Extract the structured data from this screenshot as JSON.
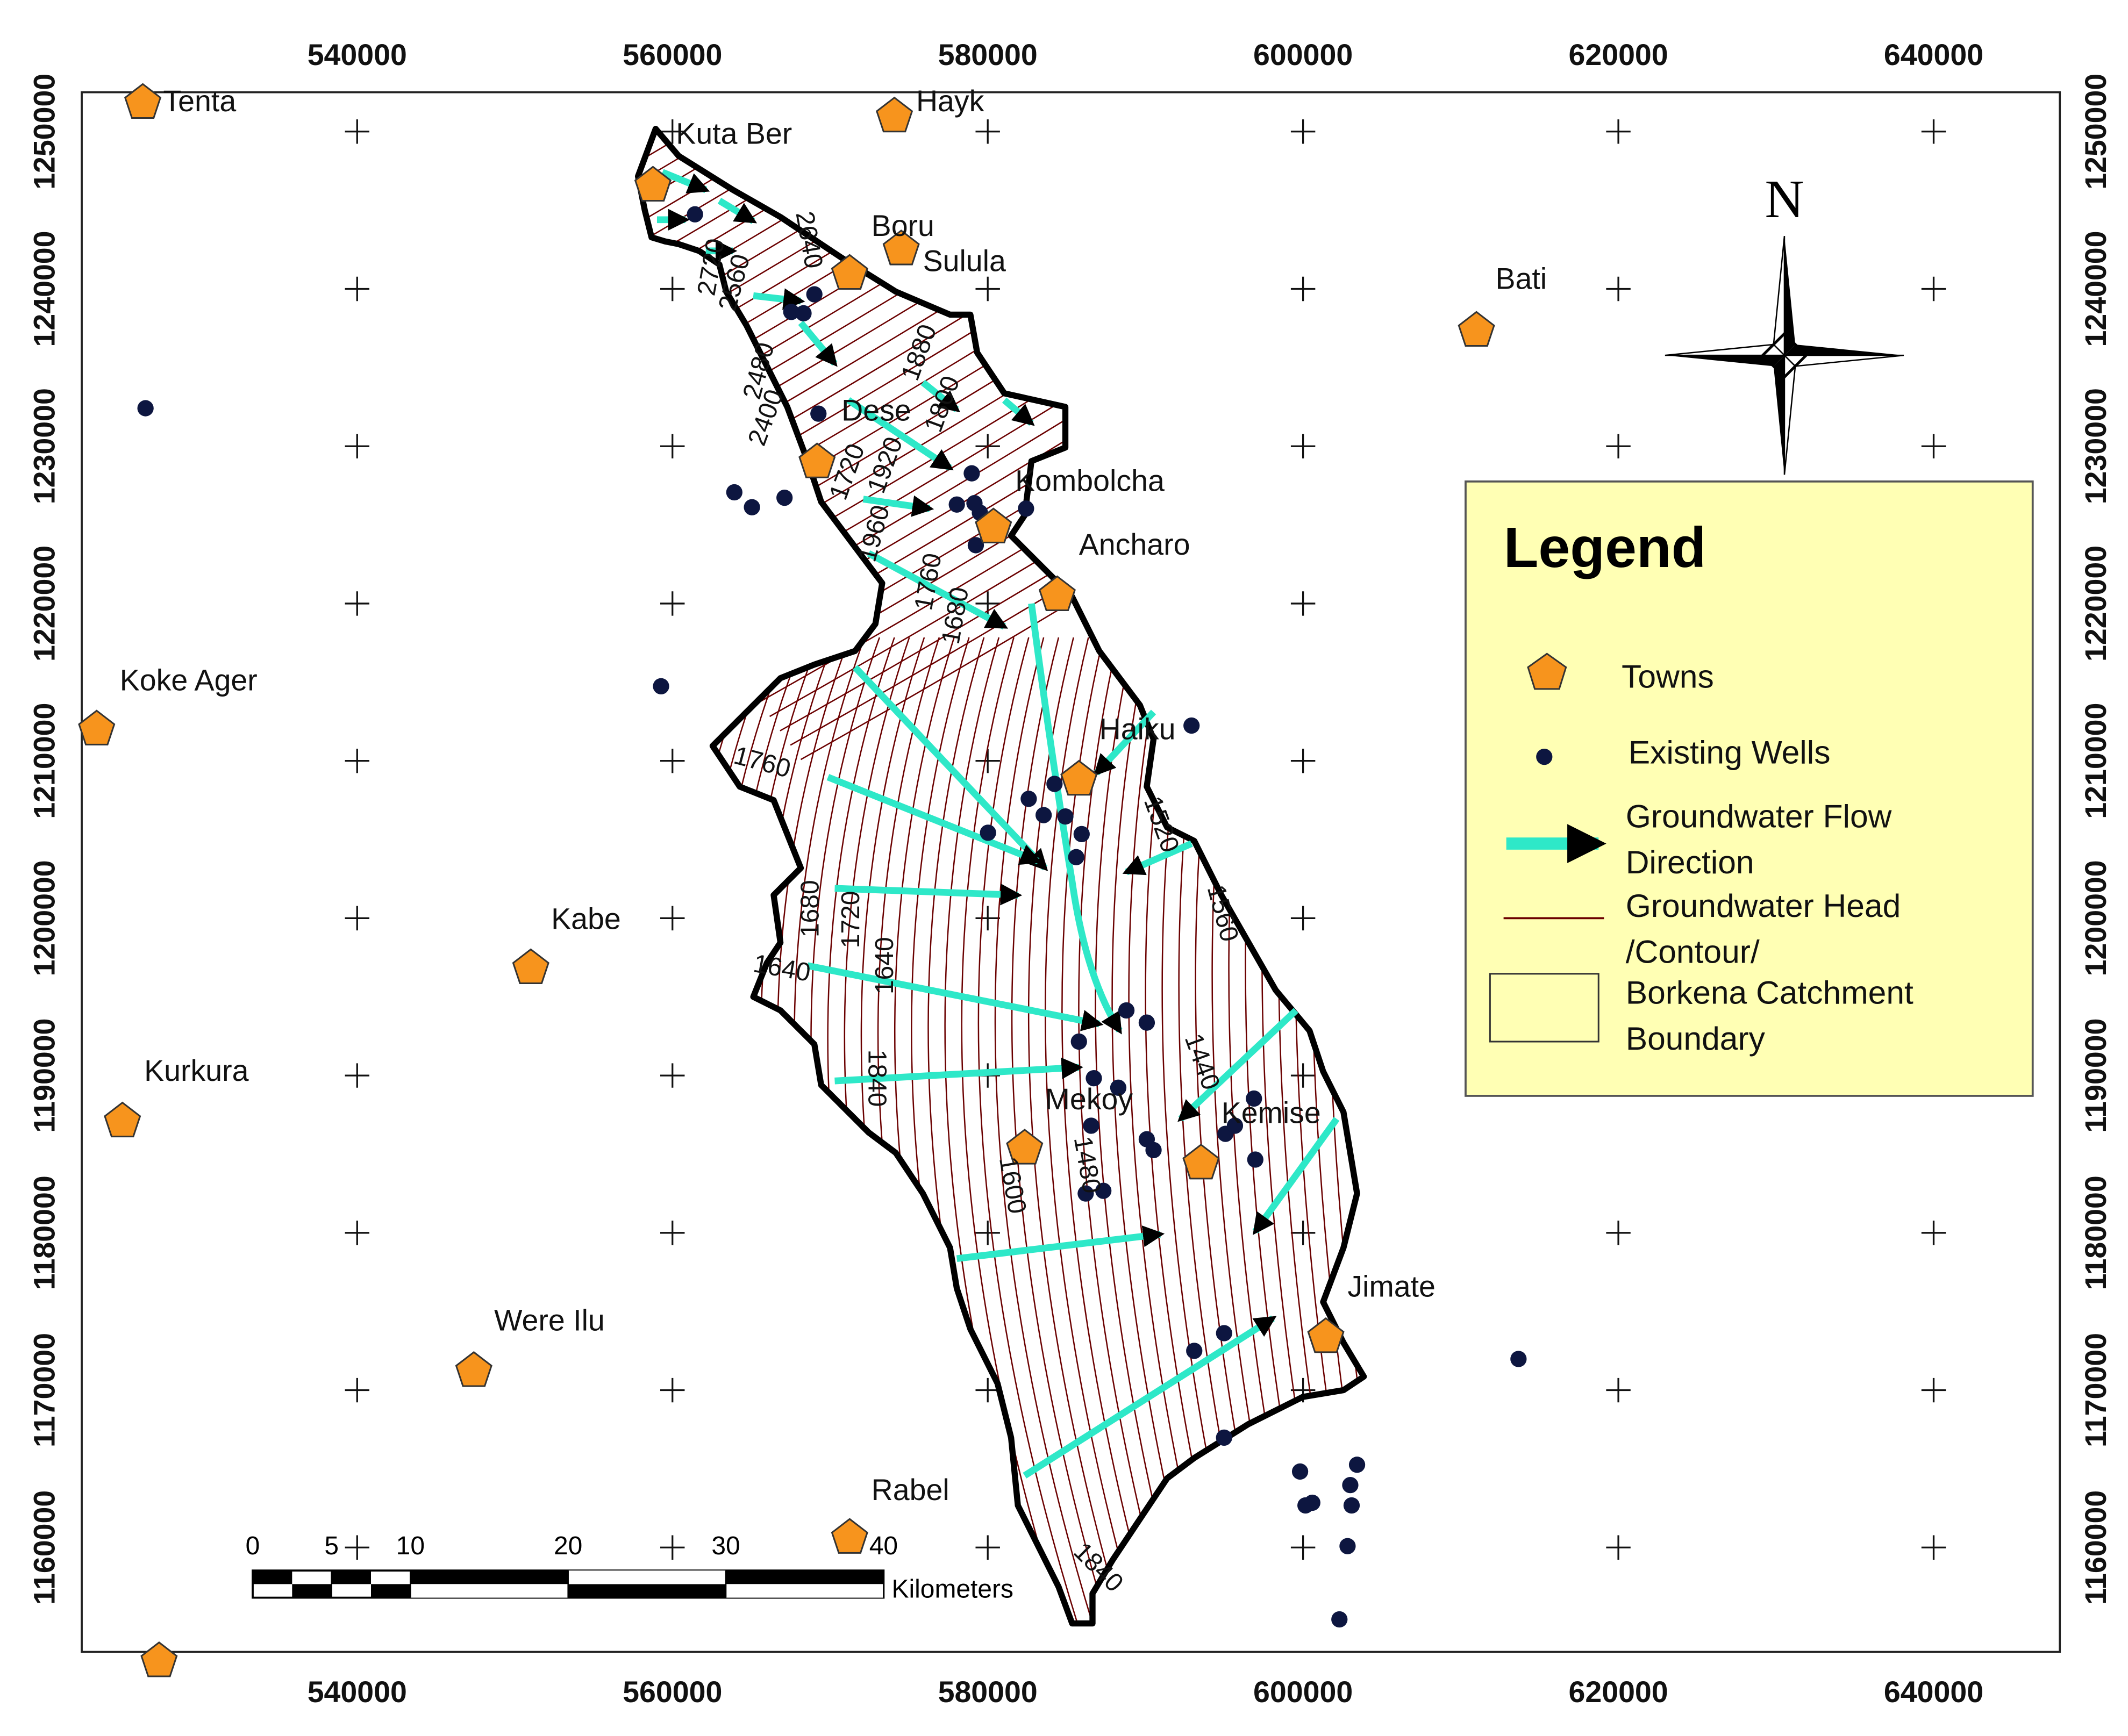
{
  "map": {
    "x_ticks": [
      540000,
      560000,
      580000,
      600000,
      620000,
      640000
    ],
    "y_ticks": [
      1160000,
      1170000,
      1180000,
      1190000,
      1200000,
      1210000,
      1220000,
      1230000,
      1240000,
      1250000
    ],
    "north": "N",
    "towns": [
      "Tenta",
      "Hayk",
      "Kuta Ber",
      "Boru",
      "Sulula",
      "Bati",
      "Dese",
      "Kombolcha",
      "Ancharo",
      "Koke Ager",
      "Haiku",
      "Kabe",
      "Kurkura",
      "Mekoy",
      "Kemise",
      "Jimate",
      "Were Ilu",
      "Rabel"
    ],
    "contour_labels": [
      "2640",
      "2720",
      "2560",
      "2480",
      "2400",
      "1880",
      "1800",
      "1720",
      "1920",
      "1960",
      "1760",
      "1680",
      "1760",
      "1520",
      "1560",
      "1680",
      "1720",
      "1640",
      "1640",
      "1840",
      "1440",
      "1600",
      "1480",
      "1840"
    ],
    "legend": {
      "title": "Legend",
      "items": [
        [
          "Towns"
        ],
        [
          "Existing Wells"
        ],
        [
          "Groundwater Flow",
          "Direction"
        ],
        [
          "Groundwater Head",
          "/Contour/"
        ],
        [
          "Borkena Catchment",
          "Boundary"
        ]
      ]
    },
    "scale_bar": {
      "ticks": [
        0,
        5,
        10,
        20,
        30,
        40
      ],
      "unit": "Kilometers"
    }
  }
}
